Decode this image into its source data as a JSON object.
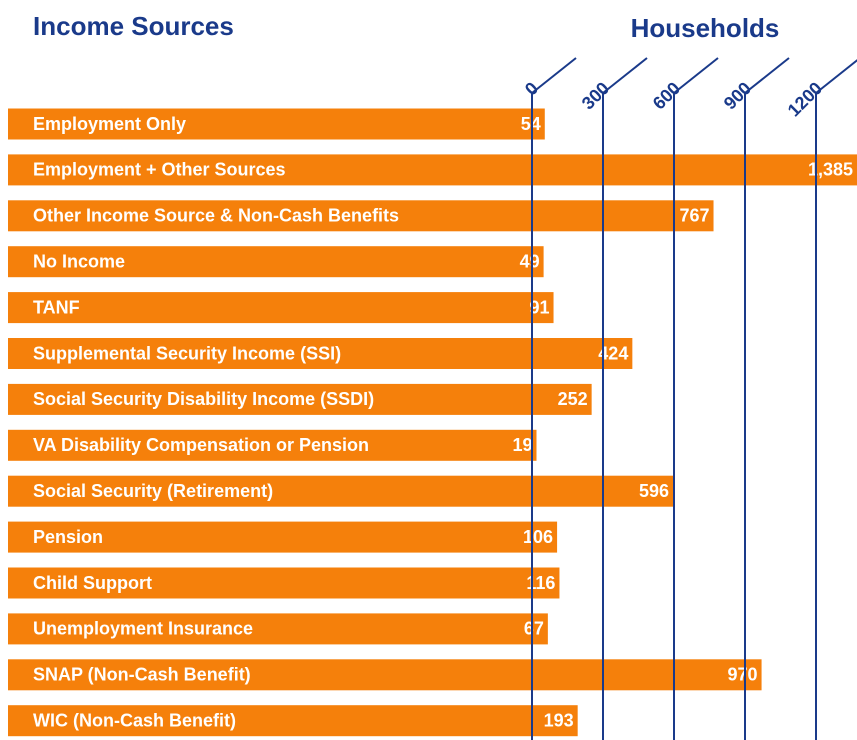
{
  "chart_data": {
    "type": "bar",
    "orientation": "horizontal",
    "title": "Income Sources",
    "x_axis_title": "Households",
    "categories": [
      "Employment Only",
      "Employment + Other Sources",
      "Other Income Source & Non-Cash Benefits",
      "No Income",
      "TANF",
      "Supplemental Security Income (SSI)",
      "Social Security Disability Income (SSDI)",
      "VA Disability Compensation or Pension",
      "Social Security (Retirement)",
      "Pension",
      "Child Support",
      "Unemployment Insurance",
      "SNAP (Non-Cash Benefit)",
      "WIC (Non-Cash Benefit)"
    ],
    "values": [
      54,
      1385,
      767,
      49,
      91,
      424,
      252,
      19,
      596,
      106,
      116,
      67,
      970,
      193
    ],
    "value_labels": [
      "54",
      "1,385",
      "767",
      "49",
      "91",
      "424",
      "252",
      "19",
      "596",
      "106",
      "116",
      "67",
      "970",
      "193"
    ],
    "color": "#f5800b",
    "xlim": [
      0,
      1200
    ],
    "xticks": [
      0,
      300,
      600,
      900,
      1200
    ],
    "grid": true
  }
}
